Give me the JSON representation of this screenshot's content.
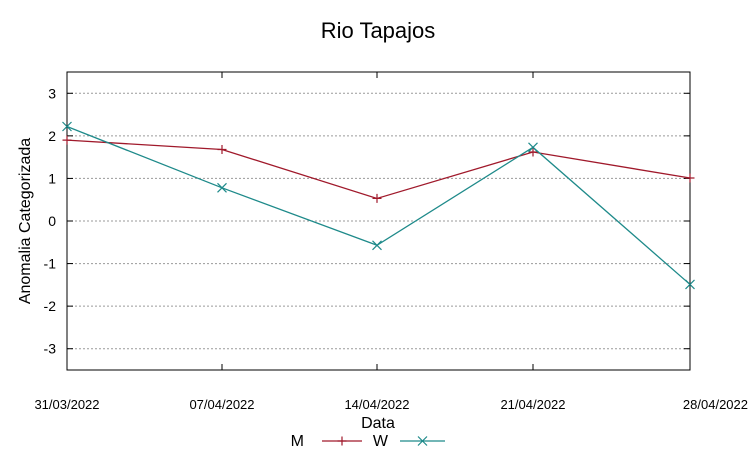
{
  "chart_data": {
    "type": "line",
    "title": "Rio Tapajos",
    "xlabel": "Data",
    "ylabel": "Anomalia Categorizada",
    "categories": [
      "31/03/2022",
      "07/04/2022",
      "14/04/2022",
      "21/04/2022",
      "28/04/2022"
    ],
    "yticks": [
      "3",
      "2",
      "1",
      "0",
      "-1",
      "-2",
      "-3"
    ],
    "ylim": [
      -3.5,
      3.5
    ],
    "grid": "horizontal dotted",
    "legend_position": "bottom-center",
    "series": [
      {
        "name": "M",
        "color": "#a0192b",
        "marker": "plus",
        "values": [
          1.9,
          1.68,
          0.53,
          1.62,
          1.01
        ]
      },
      {
        "name": "W",
        "color": "#1e8a8a",
        "marker": "cross",
        "values": [
          2.22,
          0.78,
          -0.57,
          1.73,
          -1.49
        ]
      }
    ]
  }
}
